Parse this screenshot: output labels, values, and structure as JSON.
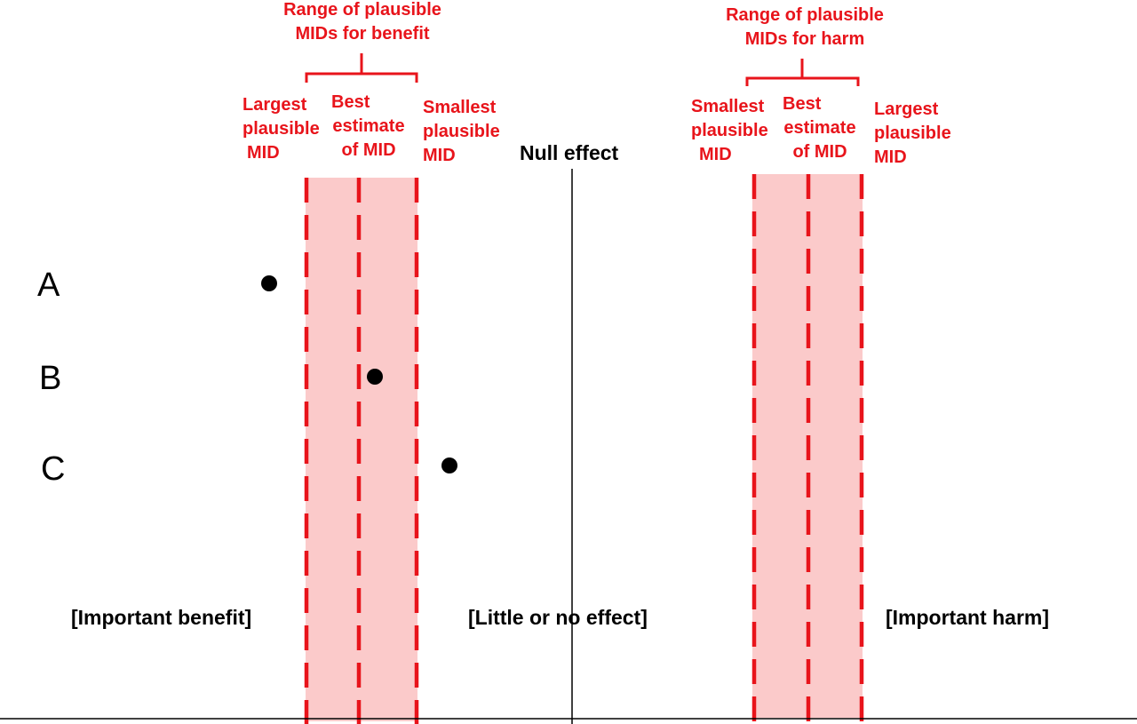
{
  "benefit": {
    "range_title": [
      "Range of plausible",
      "MIDs for benefit"
    ],
    "largest": [
      "Largest",
      "plausible",
      "MID"
    ],
    "best": [
      "Best",
      "estimate",
      "of MID"
    ],
    "smallest": [
      "Smallest",
      "plausible",
      "MID"
    ]
  },
  "harm": {
    "range_title": [
      "Range of plausible",
      "MIDs for harm"
    ],
    "smallest": [
      "Smallest",
      "plausible",
      "MID"
    ],
    "best": [
      "Best",
      "estimate",
      "of MID"
    ],
    "largest": [
      "Largest",
      "plausible",
      "MID"
    ]
  },
  "null_effect": "Null effect",
  "rows": [
    {
      "label": "A"
    },
    {
      "label": "B"
    },
    {
      "label": "C"
    }
  ],
  "zones": {
    "benefit": "[Important benefit]",
    "little": "[Little or no effect]",
    "harm": "[Important harm]"
  },
  "colors": {
    "accent_red": "#e8141b",
    "band_fill": "#fbcaca",
    "text": "#000000"
  }
}
